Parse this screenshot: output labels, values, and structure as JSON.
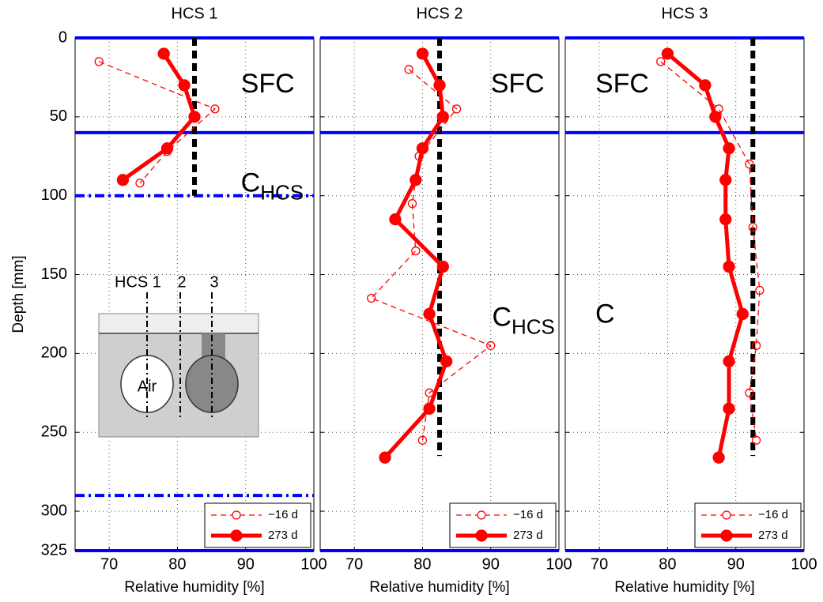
{
  "chart_data": [
    {
      "type": "line",
      "title": "HCS 1",
      "xlabel": "Relative humidity [%]",
      "ylabel": "Depth [mm]",
      "xlim": [
        65,
        100
      ],
      "xticks": [
        70,
        80,
        90,
        100
      ],
      "ylim": [
        0,
        325
      ],
      "y_inverted": true,
      "yticks": [
        0,
        50,
        100,
        150,
        200,
        250,
        300,
        325
      ],
      "grid": true,
      "legend": "lower right",
      "series": [
        {
          "name": "−16 d",
          "color": "#ff0000",
          "style": "dashed",
          "marker": "open",
          "x": [
            68.5,
            85.5,
            78.5,
            74.5
          ],
          "y": [
            15,
            45,
            72,
            92
          ]
        },
        {
          "name": "273 d",
          "color": "#ff0000",
          "style": "solid",
          "marker": "filled",
          "x": [
            78,
            81,
            82.5,
            78.5,
            72
          ],
          "y": [
            10,
            30,
            50,
            70,
            90
          ]
        }
      ],
      "vline": {
        "value": 82.5,
        "yrange": [
          0,
          100
        ],
        "color": "#000000"
      },
      "hline_color": "#0000ff",
      "hlines": [
        {
          "value": 0,
          "style": "solid"
        },
        {
          "value": 60,
          "style": "solid"
        },
        {
          "value": 100,
          "style": "dashdot"
        },
        {
          "value": 290,
          "style": "dashdot"
        },
        {
          "value": 325,
          "style": "solid"
        }
      ],
      "annotations": [
        {
          "text": "SFC",
          "x": 89.3,
          "y": 30
        },
        {
          "text": "C",
          "sub": "HCS",
          "x": 89.3,
          "y": 93
        }
      ],
      "inset": {
        "labels": [
          "HCS 1",
          "2",
          "3"
        ],
        "air": "Air"
      }
    },
    {
      "type": "line",
      "title": "HCS 2",
      "xlabel": "Relative humidity [%]",
      "sharey": true,
      "xlim": [
        65,
        100
      ],
      "xticks": [
        70,
        80,
        90,
        100
      ],
      "ylim": [
        0,
        325
      ],
      "y_inverted": true,
      "grid": true,
      "legend": "lower right",
      "series": [
        {
          "name": "−16 d",
          "color": "#ff0000",
          "style": "dashed",
          "marker": "open",
          "x": [
            78,
            85,
            79.5,
            78.5,
            79,
            72.5,
            90,
            81,
            80
          ],
          "y": [
            20,
            45,
            75,
            105,
            135,
            165,
            195,
            225,
            255
          ]
        },
        {
          "name": "273 d",
          "color": "#ff0000",
          "style": "solid",
          "marker": "filled",
          "x": [
            80,
            82.5,
            83,
            80,
            79,
            76,
            83,
            81,
            83.5,
            81,
            74.5
          ],
          "y": [
            10,
            30,
            50,
            70,
            90,
            115,
            145,
            175,
            205,
            235,
            266
          ]
        }
      ],
      "vline": {
        "value": 82.5,
        "yrange": [
          0,
          265
        ],
        "color": "#000000"
      },
      "hline_color": "#0000ff",
      "hlines": [
        {
          "value": 0,
          "style": "solid"
        },
        {
          "value": 60,
          "style": "solid"
        },
        {
          "value": 325,
          "style": "solid"
        }
      ],
      "annotations": [
        {
          "text": "SFC",
          "x": 90,
          "y": 30
        },
        {
          "text": "C",
          "sub": "HCS",
          "x": 90.2,
          "y": 178
        }
      ]
    },
    {
      "type": "line",
      "title": "HCS 3",
      "xlabel": "Relative humidity [%]",
      "sharey": true,
      "xlim": [
        65,
        100
      ],
      "xticks": [
        70,
        80,
        90,
        100
      ],
      "ylim": [
        0,
        325
      ],
      "y_inverted": true,
      "grid": true,
      "legend": "lower right",
      "series": [
        {
          "name": "−16 d",
          "color": "#ff0000",
          "style": "dashed",
          "marker": "open",
          "x": [
            79,
            87.5,
            92,
            92.5,
            93.5,
            93,
            92,
            93
          ],
          "y": [
            15,
            45,
            80,
            120,
            160,
            195,
            225,
            255
          ]
        },
        {
          "name": "273 d",
          "color": "#ff0000",
          "style": "solid",
          "marker": "filled",
          "x": [
            80,
            85.5,
            87,
            89,
            88.5,
            88.5,
            89,
            91,
            89,
            89,
            87.5
          ],
          "y": [
            10,
            30,
            50,
            70,
            90,
            115,
            145,
            175,
            205,
            235,
            266
          ]
        }
      ],
      "vline": {
        "value": 92.5,
        "yrange": [
          0,
          265
        ],
        "color": "#000000"
      },
      "hline_color": "#0000ff",
      "hlines": [
        {
          "value": 0,
          "style": "solid"
        },
        {
          "value": 60,
          "style": "solid"
        },
        {
          "value": 325,
          "style": "solid"
        }
      ],
      "annotations": [
        {
          "text": "SFC",
          "x": 69.4,
          "y": 30
        },
        {
          "text": "C",
          "x": 69.4,
          "y": 176
        }
      ]
    }
  ]
}
